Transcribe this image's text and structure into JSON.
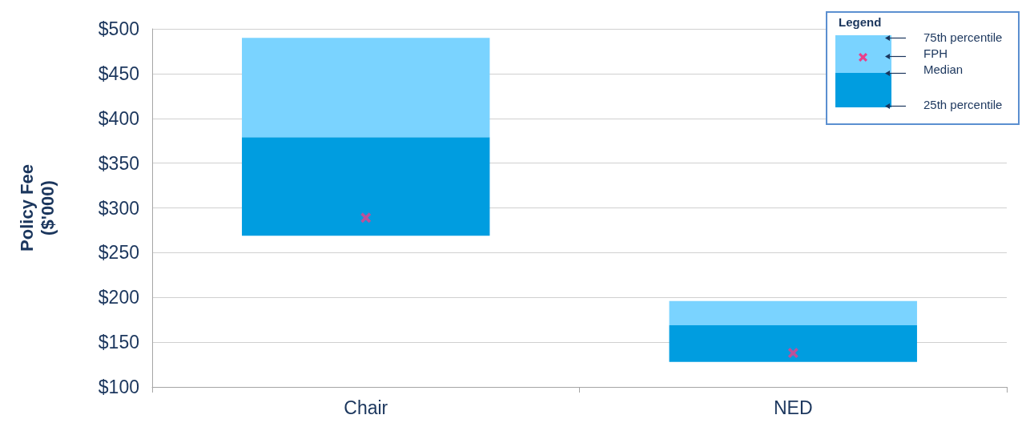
{
  "chart_data": {
    "type": "bar",
    "ylabel": "Policy Fee\n($'000)",
    "categories": [
      "Chair",
      "NED"
    ],
    "series": [
      {
        "color": "#009de0",
        "base": [
          269,
          128
        ],
        "values": [
          110,
          41
        ]
      },
      {
        "color": "#7ad3ff",
        "base": [
          379,
          169
        ],
        "values": [
          111,
          27
        ]
      },
      {
        "type": "scatter",
        "name": "FPH",
        "color": "#e8408a",
        "x": [
          "Chair",
          "NED"
        ],
        "values": [
          289,
          138
        ],
        "marker": "cross"
      }
    ],
    "ylim": [
      100,
      500
    ],
    "yticks": [
      {
        "value": 100,
        "label": "$100"
      },
      {
        "value": 150,
        "label": "$150"
      },
      {
        "value": 200,
        "label": "$200"
      },
      {
        "value": 250,
        "label": "$250"
      },
      {
        "value": 300,
        "label": "$300"
      },
      {
        "value": 350,
        "label": "$350"
      },
      {
        "value": 400,
        "label": "$400"
      },
      {
        "value": 450,
        "label": "$450"
      },
      {
        "value": 500,
        "label": "$500"
      }
    ],
    "grid": "y",
    "legend": "top right",
    "legend_title": "Legend",
    "annotations": [
      "75th percentile",
      "Median",
      "25th percentile"
    ]
  }
}
